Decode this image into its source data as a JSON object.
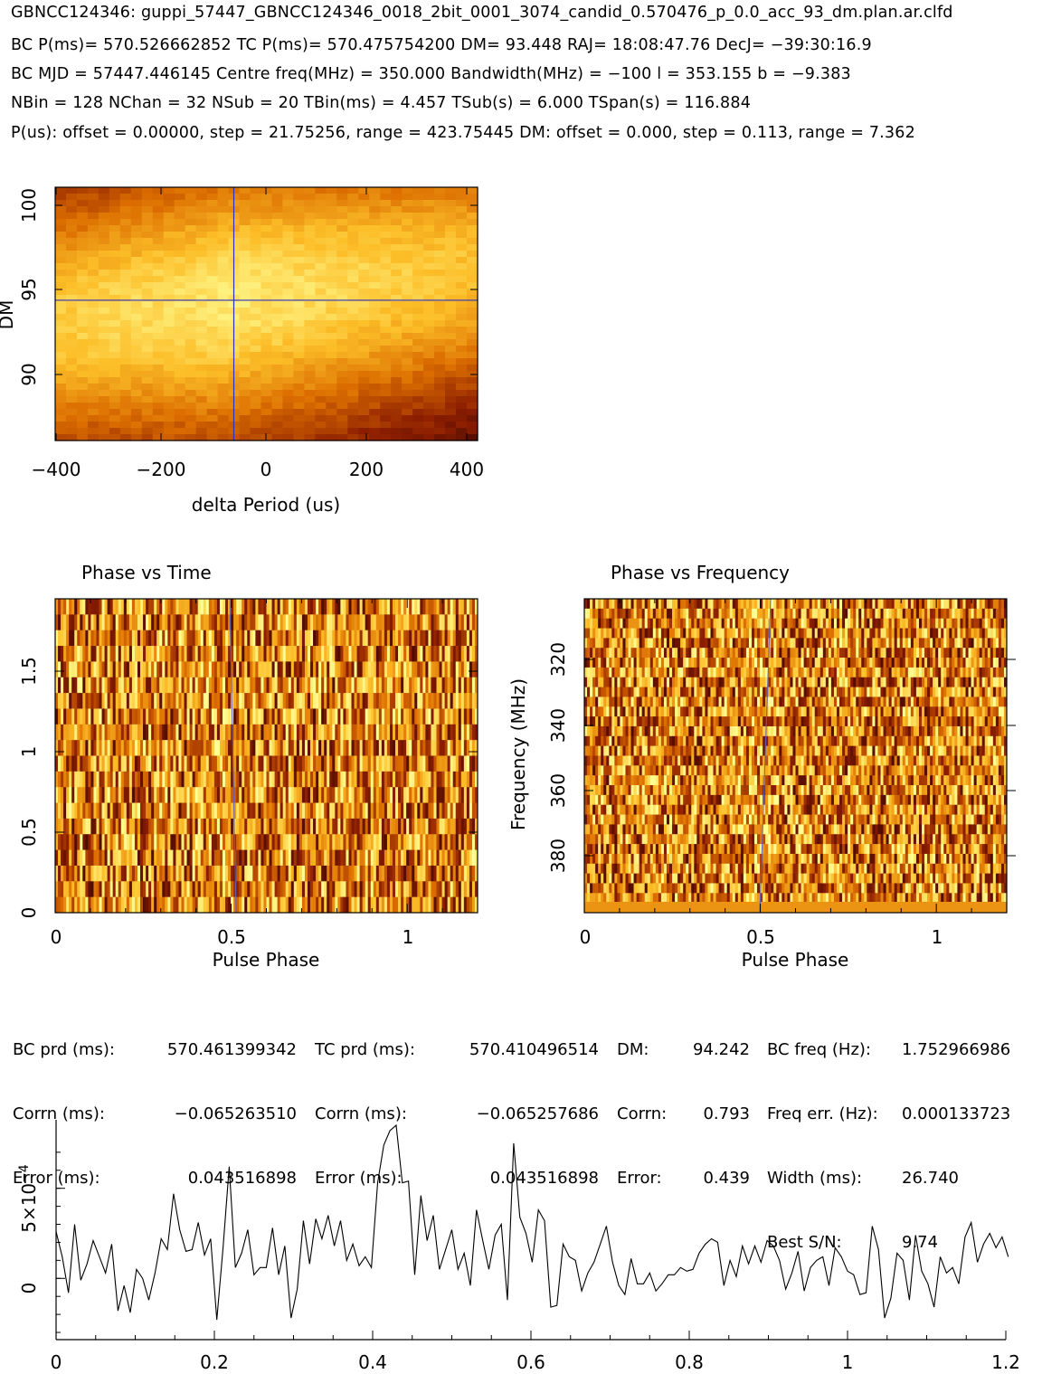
{
  "header": {
    "line1": "GBNCC124346: guppi_57447_GBNCC124346_0018_2bit_0001_3074_candid_0.570476_p_0.0_acc_93_dm.plan.ar.clfd",
    "line2": "BC P(ms)= 570.526662852 TC P(ms)= 570.475754200 DM= 93.448 RAJ= 18:08:47.76 DecJ= −39:30:16.9",
    "line3": "BC MJD = 57447.446145 Centre freq(MHz) = 350.000 Bandwidth(MHz) = −100 l = 353.155 b = −9.383",
    "line4": "NBin = 128 NChan = 32 NSub = 20 TBin(ms) = 4.457 TSub(s) = 6.000 TSpan(s) = 116.884",
    "line5": "P(us): offset = 0.00000, step = 21.75256, range = 423.75445 DM: offset = 0.000, step = 0.113, range = 7.362"
  },
  "colors": {
    "heatmap_low": "#3a0000",
    "heatmap_mid": "#e07a00",
    "heatmap_high": "#ffff90",
    "crosshair": "#3030c0",
    "profile_line": "#000000"
  },
  "stats": {
    "col1": {
      "labels": [
        "BC prd (ms):",
        "Corrn (ms):",
        "Error (ms):"
      ],
      "values": [
        "570.461399342",
        "−0.065263510",
        "0.043516898"
      ]
    },
    "col2": {
      "labels": [
        "TC prd (ms):",
        "Corrn (ms):",
        "Error (ms):"
      ],
      "values": [
        "570.410496514",
        "−0.065257686",
        "0.043516898"
      ]
    },
    "col3": {
      "labels": [
        "DM:",
        "Corrn:",
        "Error:"
      ],
      "values": [
        "94.242",
        "0.793",
        "0.439"
      ]
    },
    "col4": {
      "labels": [
        "BC freq (Hz):",
        "Freq err. (Hz):",
        "Width (ms):",
        "Best S/N:"
      ],
      "values": [
        "1.752966986",
        "0.000133723",
        "26.740",
        "9.74"
      ]
    }
  },
  "chart_data": [
    {
      "type": "heatmap",
      "title": "",
      "xlabel": "delta Period (us)",
      "ylabel": "DM",
      "xlim": [
        -423.75,
        423.75
      ],
      "ylim": [
        86.1,
        100.8
      ],
      "xticks": [
        "−400",
        "−200",
        "0",
        "200",
        "400"
      ],
      "yticks": [
        "90",
        "95",
        "100"
      ],
      "crosshair": {
        "x": -65.3,
        "y": 94.242
      }
    },
    {
      "type": "heatmap",
      "title": "Phase vs Time",
      "xlabel": "Pulse Phase",
      "ylabel": "",
      "xlim": [
        0,
        1.2
      ],
      "ylim": [
        0,
        1.95
      ],
      "xticks": [
        "0",
        "0.5",
        "1"
      ],
      "yticks": [
        "0",
        "0.5",
        "1",
        "1.5"
      ],
      "rows": 20,
      "cols": 154
    },
    {
      "type": "heatmap",
      "title": "Phase vs Frequency",
      "xlabel": "Pulse Phase",
      "ylabel": "Frequency (MHz)",
      "xlim": [
        0,
        1.2
      ],
      "ylim": [
        400,
        302
      ],
      "xticks": [
        "0",
        "0.5",
        "1"
      ],
      "yticks": [
        "320",
        "340",
        "360",
        "380"
      ],
      "rows": 32,
      "cols": 154
    },
    {
      "type": "line",
      "title": "",
      "xlabel": "",
      "ylabel": "",
      "xlim": [
        0,
        1.2
      ],
      "ylim": [
        -0.00034,
        0.00088
      ],
      "xticks": [
        "0",
        "0.2",
        "0.4",
        "0.6",
        "0.8",
        "1",
        "1.2"
      ],
      "ytick_zero": "0",
      "ytick_base": "5×10",
      "ytick_exp": "−4",
      "x_step": 0.0078125,
      "values": [
        0.00026,
        0.00012,
        -8e-05,
        0.0003,
        -1e-05,
        8e-05,
        0.00021,
        0.00012,
        3e-05,
        0.00019,
        -0.00018,
        -4e-05,
        -0.00019,
        5e-05,
        0.0,
        -0.00012,
        3e-05,
        0.00022,
        0.00016,
        0.00047,
        0.00027,
        0.00015,
        0.00016,
        0.00031,
        0.00013,
        0.00022,
        -0.00023,
        0.00017,
        0.00062,
        6e-05,
        0.00014,
        0.00027,
        2e-05,
        6e-05,
        6e-05,
        0.00028,
        2e-05,
        0.00018,
        -0.00022,
        -6e-05,
        0.00032,
        8e-05,
        0.00033,
        0.00022,
        0.00035,
        0.00018,
        0.00032,
        0.0001,
        0.00019,
        7e-05,
        0.00012,
        6e-05,
        0.00053,
        0.00074,
        0.00082,
        0.00085,
        0.00053,
        0.00054,
        2e-05,
        0.00046,
        0.00021,
        0.00035,
        5e-05,
        0.00016,
        0.00027,
        5e-05,
        0.00014,
        -4e-05,
        0.00038,
        0.00021,
        5e-05,
        0.00024,
        0.0003,
        -0.00012,
        0.00075,
        0.00034,
        0.00025,
        9e-05,
        0.00038,
        0.00032,
        -0.00016,
        -0.00015,
        0.00019,
        0.00012,
        0.0001,
        -7e-05,
        3e-05,
        9e-05,
        0.00019,
        0.00029,
        9e-05,
        -4e-05,
        -9e-05,
        0.00011,
        -3e-05,
        -3e-05,
        3e-05,
        -7e-05,
        -3e-05,
        2e-05,
        2e-05,
        6e-05,
        4e-05,
        5e-05,
        0.00014,
        0.00019,
        0.00022,
        0.0002,
        -4e-05,
        0.0001,
        1e-05,
        0.00018,
        8e-05,
        0.00018,
        9e-05,
        0.00021,
        0.00018,
        0.0001,
        -6e-05,
        3e-05,
        0.00015,
        -7e-05,
        6e-05,
        0.0001,
        0.00012,
        -4e-05,
        0.00017,
        0.00012,
        4e-05,
        2e-05,
        -9e-05,
        -8e-05,
        0.00029,
        0.00016,
        -0.00022,
        -0.00011,
        0.00014,
        0.0001,
        -0.00012,
        0.00024,
        4e-05,
        -3e-05,
        -0.00016,
        0.00012,
        3e-05,
        6e-05,
        -3e-05,
        0.00023,
        0.00031,
        9e-05,
        0.00019,
        0.00025,
        0.00017,
        0.00023,
        0.00012
      ]
    }
  ]
}
